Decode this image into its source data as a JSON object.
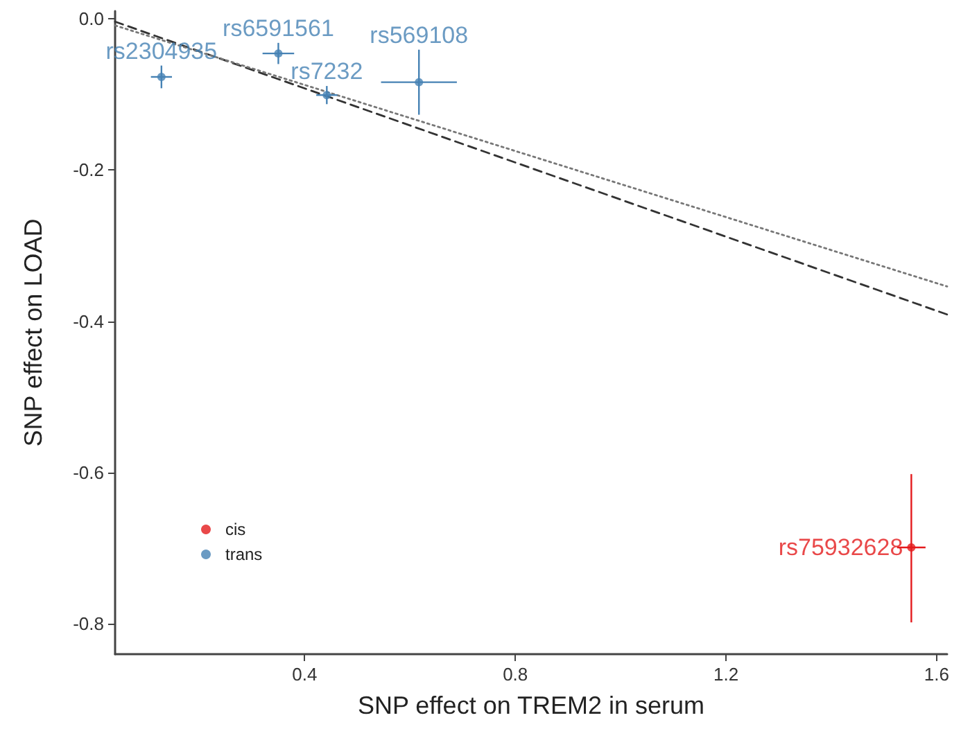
{
  "chart_data": {
    "type": "scatter",
    "xlabel": "SNP effect on TREM2 in serum",
    "ylabel": "SNP effect on LOAD",
    "xlim": [
      0.04,
      1.62
    ],
    "ylim": [
      -0.84,
      0.01
    ],
    "xticks": [
      0.4,
      0.8,
      1.2,
      1.6
    ],
    "yticks": [
      {
        "value": 0,
        "label": "0.0"
      },
      {
        "value": -0.2,
        "label": "-0.2"
      },
      {
        "value": -0.4,
        "label": "-0.4"
      },
      {
        "value": -0.6,
        "label": "-0.6"
      },
      {
        "value": -0.8,
        "label": "-0.8"
      }
    ],
    "grid": false,
    "legend": "bottom left",
    "marker": "circle",
    "series": [
      {
        "name": "cis",
        "color": "#e41a1c",
        "x": [
          1.552
        ],
        "values": [
          -0.699
        ],
        "errors": [
          [
            -0.798,
            -0.602
          ]
        ],
        "xerrors": [
          0.027
        ]
      },
      {
        "name": "trans",
        "color": "#4682b4",
        "x": [
          0.128,
          0.35,
          0.442,
          0.617
        ],
        "values": [
          -0.077,
          -0.046,
          -0.101,
          -0.084
        ],
        "errors": [
          0.015,
          0.014,
          0.012,
          0.043
        ],
        "xerrors": [
          0.02,
          0.03,
          0.02,
          0.072
        ]
      },
      {
        "type": "line",
        "color": "#333333",
        "line_style": "dashed",
        "marker": "none",
        "x": [
          0.04,
          1.62
        ],
        "values": [
          -0.004,
          -0.391
        ]
      },
      {
        "type": "line",
        "color": "#777777",
        "line_style": "dotted",
        "marker": "none",
        "x": [
          0.04,
          1.62
        ],
        "values": [
          -0.009,
          -0.354
        ]
      }
    ],
    "annotations": [
      {
        "text": "rs2304935",
        "x": 0.128,
        "y": -0.077
      },
      {
        "text": "rs6591561",
        "x": 0.35,
        "y": -0.046
      },
      {
        "text": "rs7232",
        "x": 0.442,
        "y": -0.101
      },
      {
        "text": "rs569108",
        "x": 0.617,
        "y": -0.084
      },
      {
        "text": "rs75932628",
        "x": 1.552,
        "y": -0.699
      }
    ]
  }
}
